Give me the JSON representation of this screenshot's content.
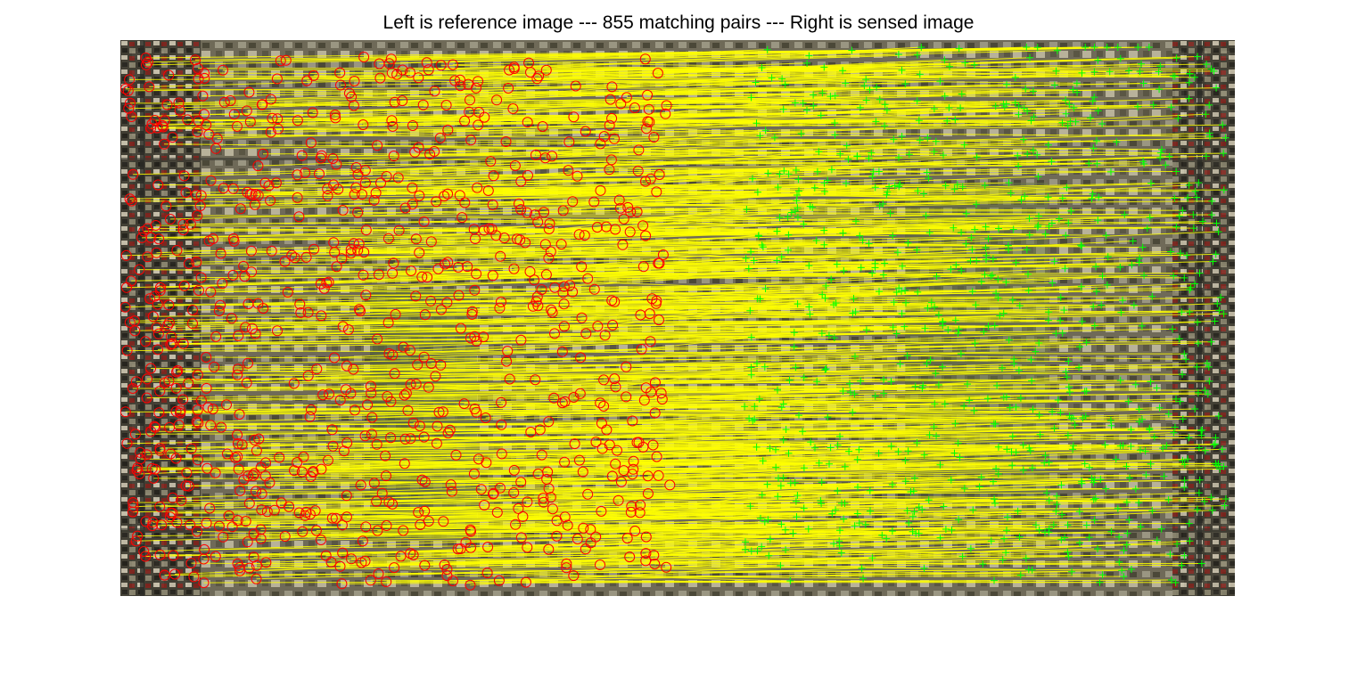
{
  "figure": {
    "title": "Left is reference image --- 855 matching pairs --- Right is sensed image"
  },
  "legend_colors": {
    "reference_marker": "#ff0000",
    "sensed_marker": "#00ff00",
    "match_line": "#ffff00"
  },
  "matches": {
    "count": 855
  }
}
